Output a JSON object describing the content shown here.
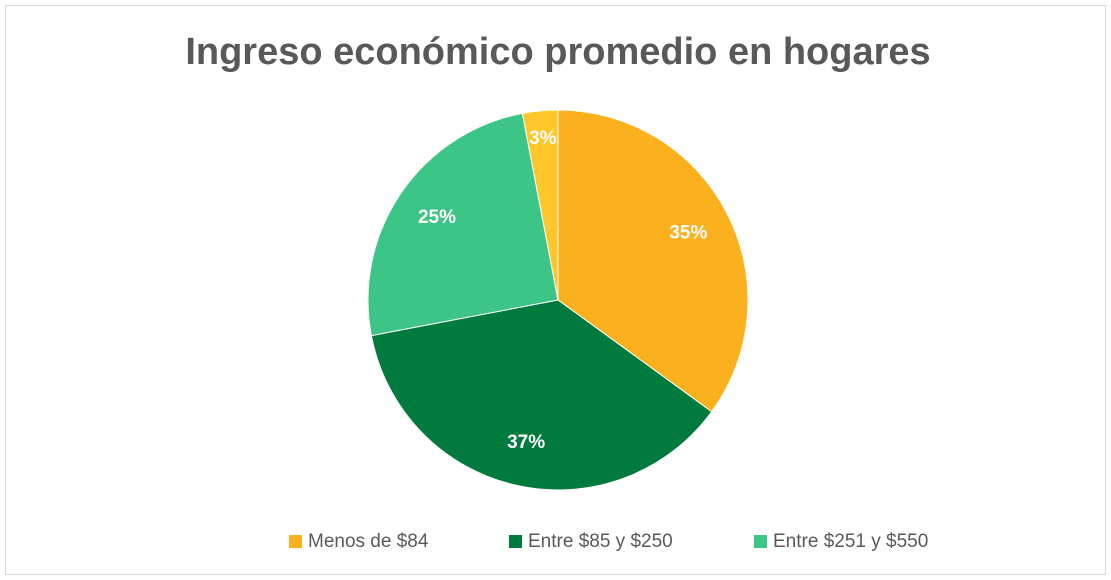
{
  "chart_data": {
    "type": "pie",
    "title": "Ingreso económico promedio en hogares",
    "categories": [
      "Menos de $84",
      "Entre $85 y $250",
      "Entre $251 y $550",
      null
    ],
    "values": [
      35,
      37,
      25,
      3
    ],
    "value_labels": [
      "35%",
      "37%",
      "25%",
      "3%"
    ],
    "colors": [
      "#FBB11E",
      "#007A3D",
      "#3DC487",
      "#FFC72C"
    ]
  }
}
